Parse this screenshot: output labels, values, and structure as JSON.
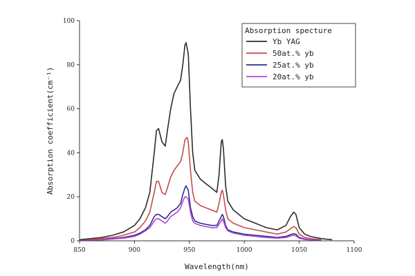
{
  "chart_data": {
    "type": "line",
    "xlabel": "Wavelength(nm)",
    "ylabel": "Absorption coefficient(cm⁻¹)",
    "xlim": [
      850,
      1100
    ],
    "ylim": [
      0,
      100
    ],
    "x_ticks": [
      850,
      900,
      950,
      1000,
      1050,
      1100
    ],
    "y_ticks": [
      0,
      20,
      40,
      60,
      80,
      100
    ],
    "legend": {
      "title": "Absorption specture",
      "position": "top-right"
    },
    "series": [
      {
        "name": "Yb YAG",
        "color": "#2b2b2b",
        "points": [
          [
            850,
            0.5
          ],
          [
            860,
            1
          ],
          [
            870,
            1.5
          ],
          [
            880,
            2.5
          ],
          [
            890,
            4
          ],
          [
            900,
            7
          ],
          [
            905,
            10
          ],
          [
            910,
            15
          ],
          [
            914,
            22
          ],
          [
            918,
            40
          ],
          [
            920,
            50
          ],
          [
            922,
            51
          ],
          [
            925,
            45
          ],
          [
            928,
            43
          ],
          [
            930,
            50
          ],
          [
            933,
            60
          ],
          [
            936,
            67
          ],
          [
            939,
            70
          ],
          [
            942,
            73
          ],
          [
            944,
            80
          ],
          [
            946,
            89
          ],
          [
            947,
            90
          ],
          [
            949,
            85
          ],
          [
            951,
            60
          ],
          [
            953,
            40
          ],
          [
            955,
            32
          ],
          [
            960,
            28
          ],
          [
            965,
            26
          ],
          [
            970,
            24
          ],
          [
            975,
            22
          ],
          [
            977,
            30
          ],
          [
            979,
            45
          ],
          [
            980,
            46
          ],
          [
            981,
            42
          ],
          [
            983,
            25
          ],
          [
            985,
            18
          ],
          [
            990,
            14
          ],
          [
            1000,
            10
          ],
          [
            1010,
            8
          ],
          [
            1020,
            6
          ],
          [
            1030,
            5
          ],
          [
            1038,
            7
          ],
          [
            1042,
            11
          ],
          [
            1045,
            13
          ],
          [
            1047,
            12
          ],
          [
            1050,
            6
          ],
          [
            1055,
            3
          ],
          [
            1060,
            2
          ],
          [
            1070,
            1
          ],
          [
            1080,
            0.5
          ]
        ]
      },
      {
        "name": "50at.% yb",
        "color": "#c64a4a",
        "points": [
          [
            850,
            0.2
          ],
          [
            860,
            0.5
          ],
          [
            870,
            1
          ],
          [
            880,
            1.5
          ],
          [
            890,
            2.5
          ],
          [
            900,
            4
          ],
          [
            905,
            6
          ],
          [
            910,
            9
          ],
          [
            914,
            13
          ],
          [
            918,
            22
          ],
          [
            920,
            27
          ],
          [
            922,
            27
          ],
          [
            925,
            22
          ],
          [
            928,
            21
          ],
          [
            930,
            24
          ],
          [
            933,
            29
          ],
          [
            936,
            32
          ],
          [
            939,
            34
          ],
          [
            942,
            36
          ],
          [
            944,
            40
          ],
          [
            946,
            46
          ],
          [
            948,
            47
          ],
          [
            949,
            45
          ],
          [
            951,
            32
          ],
          [
            953,
            22
          ],
          [
            955,
            18
          ],
          [
            960,
            16
          ],
          [
            965,
            15
          ],
          [
            970,
            14
          ],
          [
            975,
            13
          ],
          [
            977,
            17
          ],
          [
            979,
            22
          ],
          [
            980,
            23
          ],
          [
            981,
            21
          ],
          [
            983,
            14
          ],
          [
            985,
            10
          ],
          [
            990,
            8
          ],
          [
            1000,
            6
          ],
          [
            1010,
            5
          ],
          [
            1020,
            4
          ],
          [
            1030,
            3
          ],
          [
            1038,
            4
          ],
          [
            1042,
            5.5
          ],
          [
            1045,
            6.5
          ],
          [
            1047,
            6
          ],
          [
            1050,
            3
          ],
          [
            1055,
            1.5
          ],
          [
            1060,
            1
          ],
          [
            1070,
            0.5
          ]
        ]
      },
      {
        "name": "25at.% yb",
        "color": "#2a2f86",
        "points": [
          [
            850,
            0.1
          ],
          [
            860,
            0.2
          ],
          [
            870,
            0.5
          ],
          [
            880,
            1
          ],
          [
            890,
            1.5
          ],
          [
            900,
            2.5
          ],
          [
            905,
            3.5
          ],
          [
            910,
            5
          ],
          [
            914,
            7
          ],
          [
            918,
            11
          ],
          [
            920,
            12
          ],
          [
            922,
            12
          ],
          [
            925,
            11
          ],
          [
            928,
            10
          ],
          [
            930,
            11
          ],
          [
            933,
            13
          ],
          [
            936,
            14
          ],
          [
            939,
            15
          ],
          [
            942,
            17
          ],
          [
            944,
            21
          ],
          [
            946,
            24
          ],
          [
            947,
            25
          ],
          [
            949,
            23
          ],
          [
            951,
            15
          ],
          [
            953,
            11
          ],
          [
            955,
            9
          ],
          [
            960,
            8
          ],
          [
            965,
            7.5
          ],
          [
            970,
            7
          ],
          [
            975,
            7
          ],
          [
            977,
            9
          ],
          [
            979,
            11
          ],
          [
            980,
            12
          ],
          [
            981,
            11
          ],
          [
            983,
            7
          ],
          [
            985,
            5
          ],
          [
            990,
            4
          ],
          [
            1000,
            3
          ],
          [
            1010,
            2.5
          ],
          [
            1020,
            2
          ],
          [
            1030,
            1.5
          ],
          [
            1038,
            2
          ],
          [
            1042,
            2.8
          ],
          [
            1045,
            3.2
          ],
          [
            1047,
            3
          ],
          [
            1050,
            1.5
          ],
          [
            1055,
            0.8
          ],
          [
            1060,
            0.5
          ],
          [
            1070,
            0.2
          ]
        ]
      },
      {
        "name": "20at.% yb",
        "color": "#b044d8",
        "points": [
          [
            850,
            0.1
          ],
          [
            860,
            0.2
          ],
          [
            870,
            0.4
          ],
          [
            880,
            0.8
          ],
          [
            890,
            1.2
          ],
          [
            900,
            2
          ],
          [
            905,
            3
          ],
          [
            910,
            4.5
          ],
          [
            914,
            6
          ],
          [
            918,
            9
          ],
          [
            920,
            10
          ],
          [
            922,
            10
          ],
          [
            925,
            9
          ],
          [
            928,
            8
          ],
          [
            930,
            9
          ],
          [
            933,
            11
          ],
          [
            936,
            12
          ],
          [
            939,
            13
          ],
          [
            942,
            15
          ],
          [
            944,
            18
          ],
          [
            946,
            20
          ],
          [
            947,
            20
          ],
          [
            949,
            19
          ],
          [
            951,
            13
          ],
          [
            953,
            9
          ],
          [
            955,
            8
          ],
          [
            960,
            7
          ],
          [
            965,
            6.5
          ],
          [
            970,
            6
          ],
          [
            975,
            6
          ],
          [
            977,
            7.5
          ],
          [
            979,
            9
          ],
          [
            980,
            10
          ],
          [
            981,
            9
          ],
          [
            983,
            6
          ],
          [
            985,
            4.5
          ],
          [
            990,
            3.5
          ],
          [
            1000,
            2.5
          ],
          [
            1010,
            2
          ],
          [
            1020,
            1.5
          ],
          [
            1030,
            1.2
          ],
          [
            1038,
            1.5
          ],
          [
            1042,
            2.2
          ],
          [
            1045,
            2.5
          ],
          [
            1047,
            2.3
          ],
          [
            1050,
            1.2
          ],
          [
            1055,
            0.6
          ],
          [
            1060,
            0.4
          ],
          [
            1070,
            0.2
          ]
        ]
      }
    ]
  }
}
